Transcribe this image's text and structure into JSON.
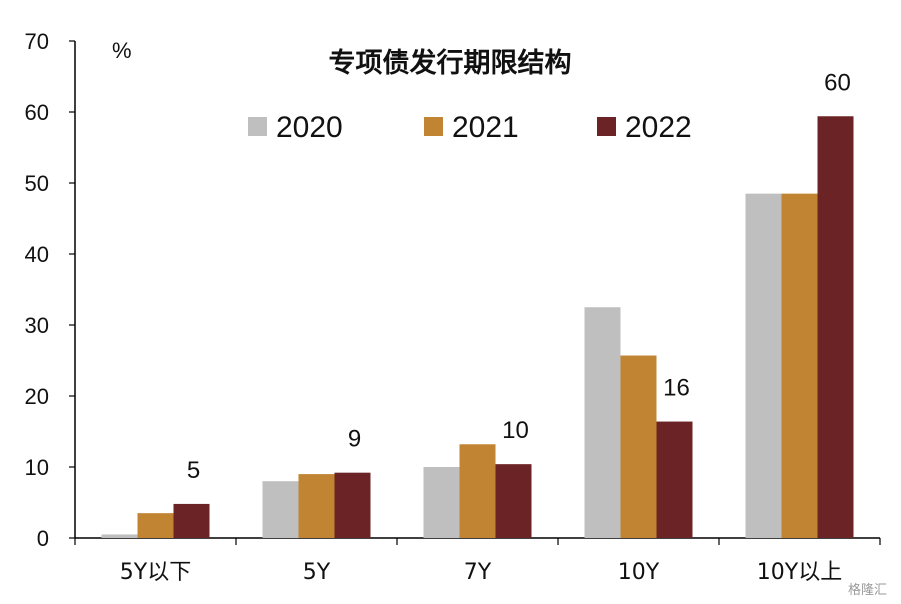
{
  "chart_data": {
    "type": "bar",
    "title": "专项债发行期限结构",
    "unit_label": "%",
    "categories": [
      "5Y以下",
      "5Y",
      "7Y",
      "10Y",
      "10Y以上"
    ],
    "ylim": [
      0,
      70
    ],
    "yticks": [
      0,
      10,
      20,
      30,
      40,
      50,
      60,
      70
    ],
    "grid": false,
    "legend_position": "top",
    "series": [
      {
        "name": "2020",
        "color": "#bfbfbf",
        "values": [
          0.5,
          8,
          10,
          32.5,
          48.5
        ]
      },
      {
        "name": "2021",
        "color": "#c08432",
        "values": [
          3.5,
          9,
          13.2,
          25.7,
          48.5
        ]
      },
      {
        "name": "2022",
        "color": "#6b2326",
        "values": [
          4.8,
          9.2,
          10.4,
          16.4,
          59.4
        ]
      }
    ],
    "data_labels": [
      {
        "category": "5Y以下",
        "series": "2022",
        "text": "5"
      },
      {
        "category": "5Y",
        "series": "2022",
        "text": "9"
      },
      {
        "category": "7Y",
        "series": "2022",
        "text": "10"
      },
      {
        "category": "10Y",
        "series": "2022",
        "text": "16"
      },
      {
        "category": "10Y以上",
        "series": "2022",
        "text": "60"
      }
    ]
  },
  "watermark": "格隆汇"
}
